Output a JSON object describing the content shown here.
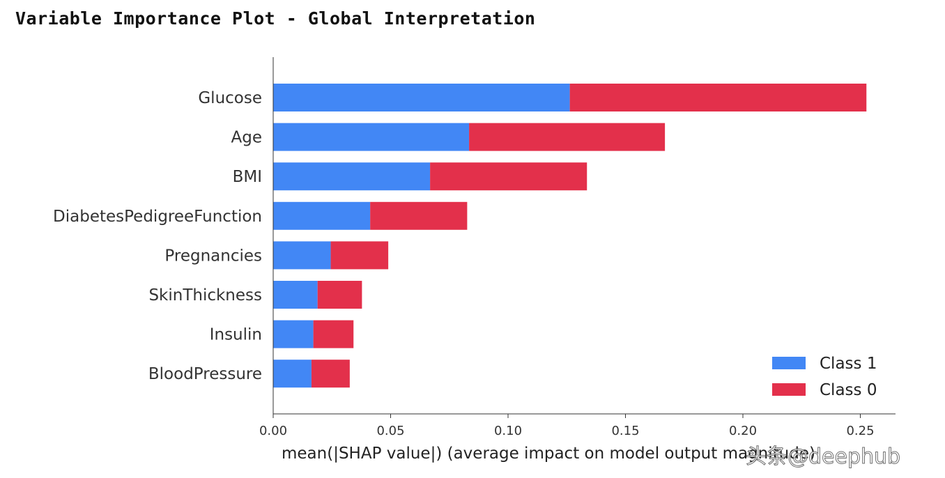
{
  "title": "Variable Importance Plot - Global Interpretation",
  "watermark": "头条@deephub",
  "colors": {
    "class1": "#4287f5",
    "class0": "#e3304b",
    "axis": "#333333"
  },
  "chart_data": {
    "type": "bar",
    "orientation": "horizontal",
    "stacked": true,
    "categories": [
      "Glucose",
      "Age",
      "BMI",
      "DiabetesPedigreeFunction",
      "Pregnancies",
      "SkinThickness",
      "Insulin",
      "BloodPressure"
    ],
    "series": [
      {
        "name": "Class 1",
        "values": [
          0.1263,
          0.0834,
          0.0668,
          0.0413,
          0.0245,
          0.0189,
          0.0171,
          0.0163
        ]
      },
      {
        "name": "Class 0",
        "values": [
          0.1263,
          0.0834,
          0.0668,
          0.0413,
          0.0245,
          0.0189,
          0.0171,
          0.0163
        ]
      }
    ],
    "xlabel": "mean(|SHAP value|) (average impact on model output magnitude)",
    "xlim": [
      0,
      0.265
    ],
    "xticks": [
      "0.00",
      "0.05",
      "0.10",
      "0.15",
      "0.20",
      "0.25"
    ],
    "legend_position": "lower-right",
    "grid": false
  }
}
